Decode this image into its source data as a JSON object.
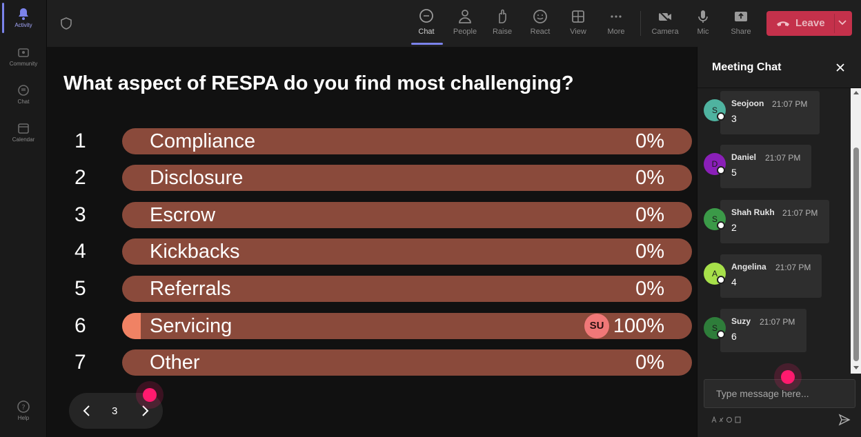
{
  "rail": {
    "items": [
      {
        "label": "Activity",
        "icon": "bell-icon"
      },
      {
        "label": "Community",
        "icon": "community-icon"
      },
      {
        "label": "Chat",
        "icon": "chat-icon"
      },
      {
        "label": "Calendar",
        "icon": "calendar-icon"
      },
      {
        "label": "Help",
        "icon": "help-icon"
      }
    ]
  },
  "toolbar": {
    "buttons": [
      {
        "label": "Chat",
        "icon": "chat-bubble-icon"
      },
      {
        "label": "People",
        "icon": "people-icon"
      },
      {
        "label": "Raise",
        "icon": "raise-hand-icon"
      },
      {
        "label": "React",
        "icon": "smiley-icon"
      },
      {
        "label": "View",
        "icon": "grid-view-icon"
      },
      {
        "label": "More",
        "icon": "more-icon"
      },
      {
        "label": "Camera",
        "icon": "camera-off-icon"
      },
      {
        "label": "Mic",
        "icon": "mic-icon"
      },
      {
        "label": "Share",
        "icon": "share-icon"
      }
    ],
    "leave_label": "Leave"
  },
  "poll": {
    "question": "What aspect of RESPA do you find most challenging?",
    "options": [
      {
        "num": "1",
        "label": "Compliance",
        "pct": "0%",
        "fraction": 0
      },
      {
        "num": "2",
        "label": "Disclosure",
        "pct": "0%",
        "fraction": 0
      },
      {
        "num": "3",
        "label": "Escrow",
        "pct": "0%",
        "fraction": 0
      },
      {
        "num": "4",
        "label": "Kickbacks",
        "pct": "0%",
        "fraction": 0
      },
      {
        "num": "5",
        "label": "Referrals",
        "pct": "0%",
        "fraction": 0
      },
      {
        "num": "6",
        "label": "Servicing",
        "pct": "100%",
        "fraction": 1.0,
        "voter_initials": "SU"
      },
      {
        "num": "7",
        "label": "Other",
        "pct": "0%",
        "fraction": 0
      }
    ],
    "page": "3"
  },
  "chat": {
    "title": "Meeting Chat",
    "messages": [
      {
        "initial": "S",
        "name": "Seojoon",
        "time": "21:07 PM",
        "text": "3",
        "avatar_color": "#4fb3a0"
      },
      {
        "initial": "D",
        "name": "Daniel",
        "time": "21:07 PM",
        "text": "5",
        "avatar_color": "#8a1fb8"
      },
      {
        "initial": "S",
        "name": "Shah Rukh",
        "time": "21:07 PM",
        "text": "2",
        "avatar_color": "#3b9a48"
      },
      {
        "initial": "A",
        "name": "Angelina",
        "time": "21:07 PM",
        "text": "4",
        "avatar_color": "#a7e04a"
      },
      {
        "initial": "S",
        "name": "Suzy",
        "time": "21:07 PM",
        "text": "6",
        "avatar_color": "#2e7d3a"
      }
    ],
    "input_placeholder": "Type message here..."
  },
  "colors": {
    "bar_bg": "#8a4a3b",
    "bar_fill": "#f08264",
    "leave_bg": "#c4314b",
    "accent": "#7b83eb",
    "cursor": "#ff1a6e"
  }
}
